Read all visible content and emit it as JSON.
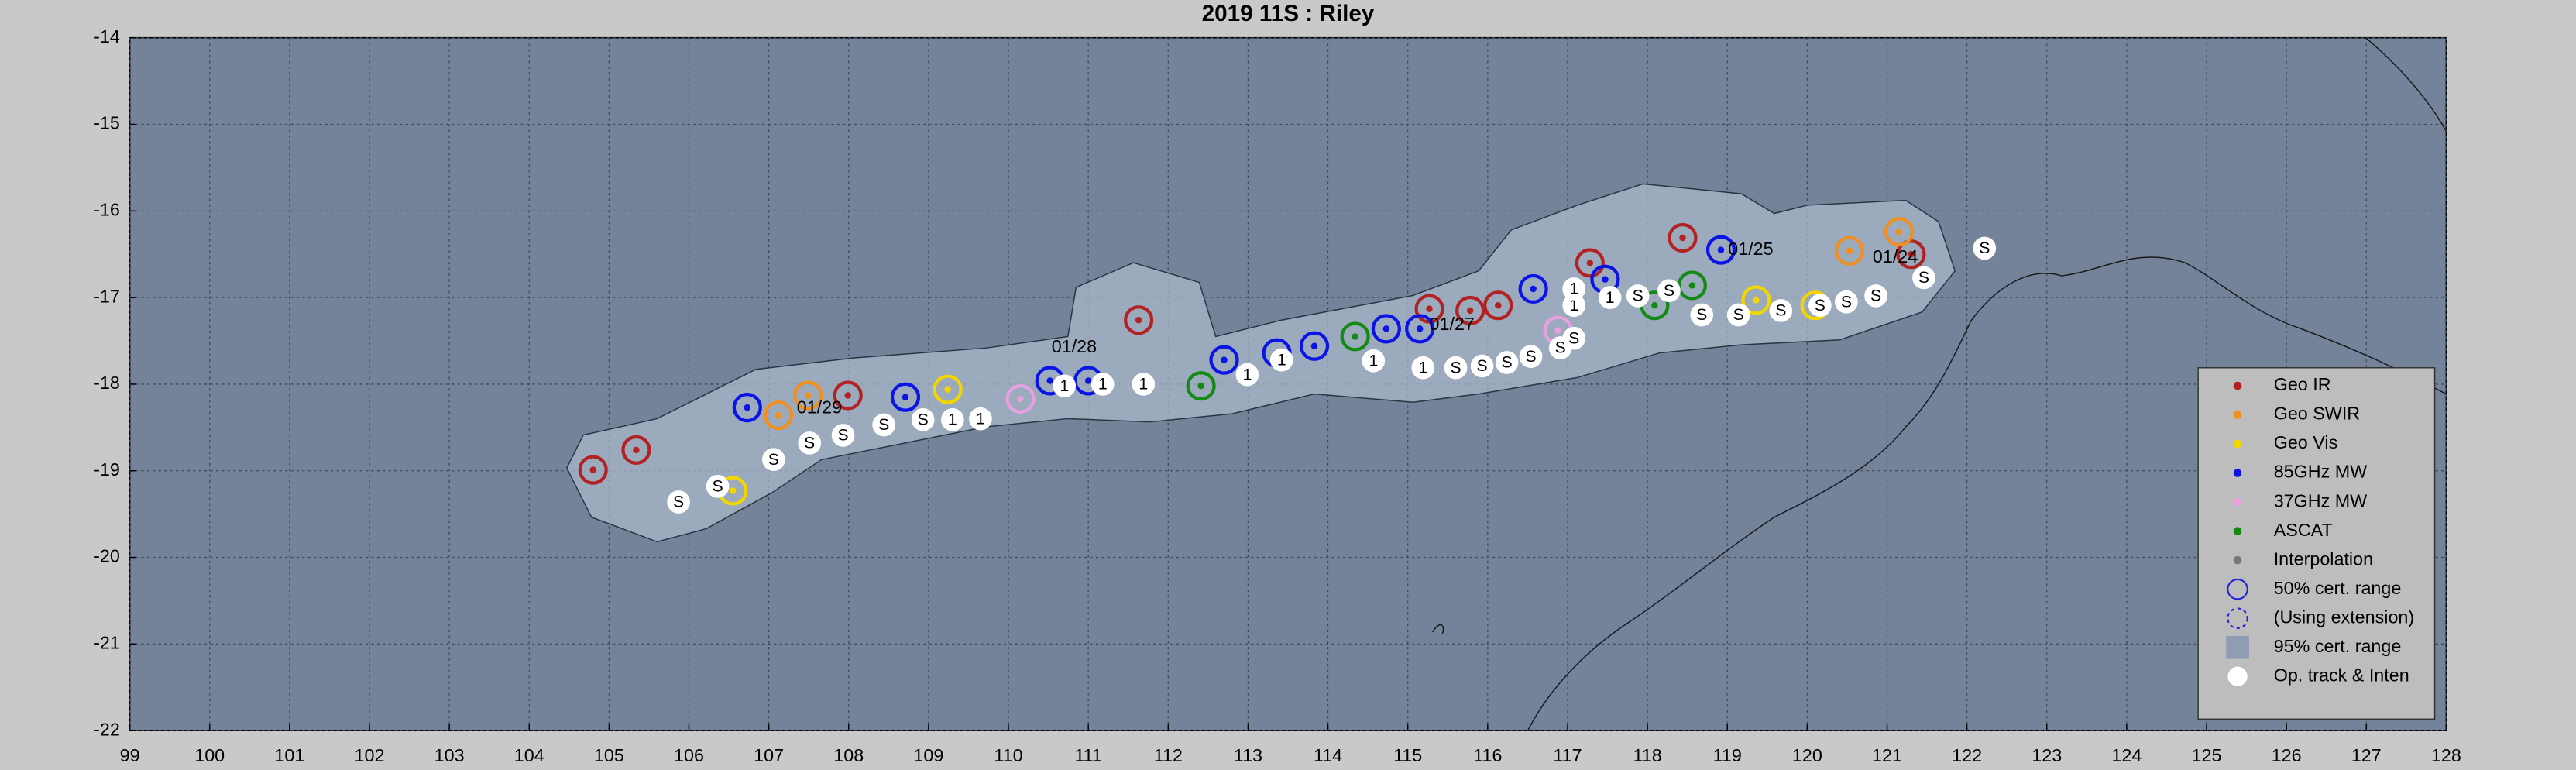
{
  "chart_data": {
    "type": "track",
    "title": "2019  11S :  Riley",
    "xlim": [
      99,
      128
    ],
    "ylim": [
      -22,
      -14
    ],
    "xticks": [
      99,
      100,
      101,
      102,
      103,
      104,
      105,
      106,
      107,
      108,
      109,
      110,
      111,
      112,
      113,
      114,
      115,
      116,
      117,
      118,
      119,
      120,
      121,
      122,
      123,
      124,
      125,
      126,
      127,
      128
    ],
    "yticks": [
      -22,
      -21,
      -20,
      -19,
      -18,
      -17,
      -16,
      -15,
      -14
    ],
    "grid": true,
    "series": [
      {
        "name": "Geo IR",
        "color": "#b22222",
        "x": [
          104.8,
          105.34,
          107.99,
          111.63,
          115.27,
          115.78,
          116.13,
          117.28,
          118.44,
          121.3
        ],
        "y": [
          -18.99,
          -18.76,
          -18.13,
          -17.26,
          -17.13,
          -17.15,
          -17.09,
          -16.6,
          -16.31,
          -16.5
        ]
      },
      {
        "name": "Geo SWIR",
        "color": "#f0901e",
        "x": [
          107.12,
          107.49,
          120.53,
          121.15
        ],
        "y": [
          -18.36,
          -18.13,
          -16.46,
          -16.24
        ]
      },
      {
        "name": "Geo Vis",
        "color": "#f2d600",
        "x": [
          106.55,
          109.24,
          119.36,
          120.1
        ],
        "y": [
          -19.23,
          -18.06,
          -17.03,
          -17.09
        ]
      },
      {
        "name": "85GHz MW",
        "color": "#0a14e6",
        "x": [
          106.73,
          108.71,
          110.52,
          111.0,
          112.7,
          113.36,
          113.83,
          114.73,
          115.15,
          116.57,
          117.47,
          118.92
        ],
        "y": [
          -18.27,
          -18.15,
          -17.96,
          -17.96,
          -17.72,
          -17.64,
          -17.56,
          -17.36,
          -17.36,
          -16.9,
          -16.79,
          -16.45
        ]
      },
      {
        "name": "37GHz MW",
        "color": "#e8a0e0",
        "x": [
          110.15,
          116.88
        ],
        "y": [
          -18.17,
          -17.38
        ]
      },
      {
        "name": "ASCAT",
        "color": "#138a13",
        "x": [
          112.41,
          114.34,
          118.09,
          118.56
        ],
        "y": [
          -18.02,
          -17.45,
          -17.09,
          -16.86
        ]
      }
    ],
    "legend_extra": [
      "Interpolation",
      "50% cert. range",
      "(Using extension)",
      "95% cert. range",
      "Op. track & Inten"
    ],
    "track": {
      "x": [
        105.87,
        106.36,
        107.06,
        107.51,
        107.93,
        108.44,
        108.93,
        109.3,
        109.65,
        110.7,
        111.18,
        111.69,
        112.99,
        113.42,
        114.57,
        115.19,
        115.6,
        115.93,
        116.24,
        116.54,
        116.91,
        117.08,
        117.08,
        117.08,
        117.53,
        117.88,
        118.27,
        118.68,
        119.14,
        119.67,
        120.16,
        120.49,
        120.86,
        121.46,
        122.22
      ],
      "y": [
        -19.36,
        -19.18,
        -18.87,
        -18.68,
        -18.59,
        -18.47,
        -18.41,
        -18.41,
        -18.4,
        -18.02,
        -18.0,
        -18.0,
        -17.89,
        -17.72,
        -17.73,
        -17.81,
        -17.81,
        -17.79,
        -17.75,
        -17.68,
        -17.58,
        -17.47,
        -17.09,
        -16.9,
        -17.0,
        -16.98,
        -16.92,
        -17.2,
        -17.2,
        -17.15,
        -17.09,
        -17.05,
        -16.98,
        -16.77,
        -16.43
      ],
      "labels": [
        "S",
        "S",
        "S",
        "S",
        "S",
        "S",
        "S",
        "1",
        "1",
        "1",
        "1",
        "1",
        "1",
        "1",
        "1",
        "1",
        "S",
        "S",
        "S",
        "S",
        "S",
        "S",
        "1",
        "1",
        "1",
        "S",
        "S",
        "S",
        "S",
        "S",
        "S",
        "S",
        "S",
        "S",
        "S"
      ]
    },
    "annotations": [
      {
        "text": "01/24",
        "x": 120.82,
        "y": -16.54
      },
      {
        "text": "01/25",
        "x": 119.01,
        "y": -16.45
      },
      {
        "text": "01/27",
        "x": 115.27,
        "y": -17.32
      },
      {
        "text": "01/28",
        "x": 110.54,
        "y": -17.58
      },
      {
        "text": "01/29",
        "x": 107.35,
        "y": -18.28
      }
    ]
  }
}
